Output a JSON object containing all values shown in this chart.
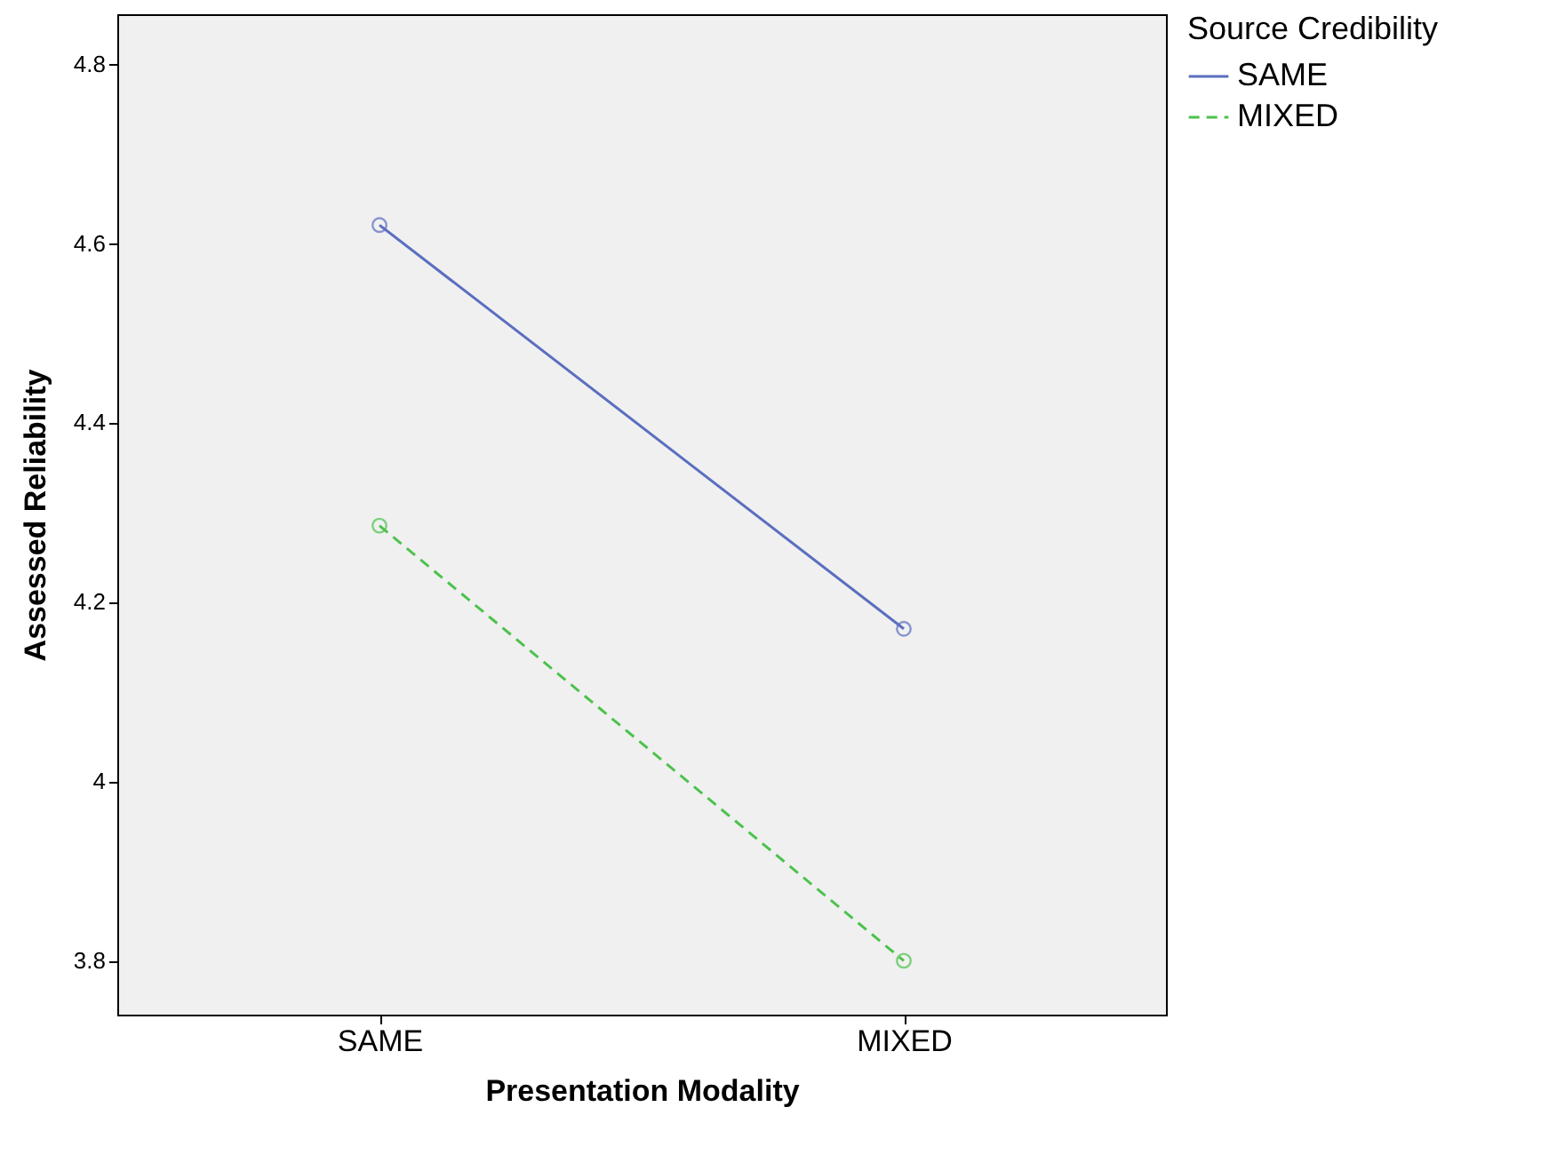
{
  "chart_data": {
    "type": "line",
    "xlabel": "Presentation Modality",
    "ylabel": "Assessed Reliability",
    "legend_title": "Source Credibility",
    "legend": "top right",
    "grid": false,
    "marker": "circle",
    "categories": [
      "SAME",
      "MIXED"
    ],
    "ylim": [
      3.74,
      4.855
    ],
    "yticks": [
      {
        "value": 3.8,
        "label": "3.8"
      },
      {
        "value": 4,
        "label": "4"
      },
      {
        "value": 4.2,
        "label": "4.2"
      },
      {
        "value": 4.4,
        "label": "4.4"
      },
      {
        "value": 4.6,
        "label": "4.6"
      },
      {
        "value": 4.8,
        "label": "4.8"
      }
    ],
    "series": [
      {
        "name": "SAME",
        "color": "#5b6ec0",
        "values": [
          4.62,
          4.17
        ],
        "line_style": "solid"
      },
      {
        "name": "MIXED",
        "color": "#4cc24c",
        "values": [
          4.285,
          3.8
        ],
        "line_style": "dashed"
      }
    ]
  }
}
